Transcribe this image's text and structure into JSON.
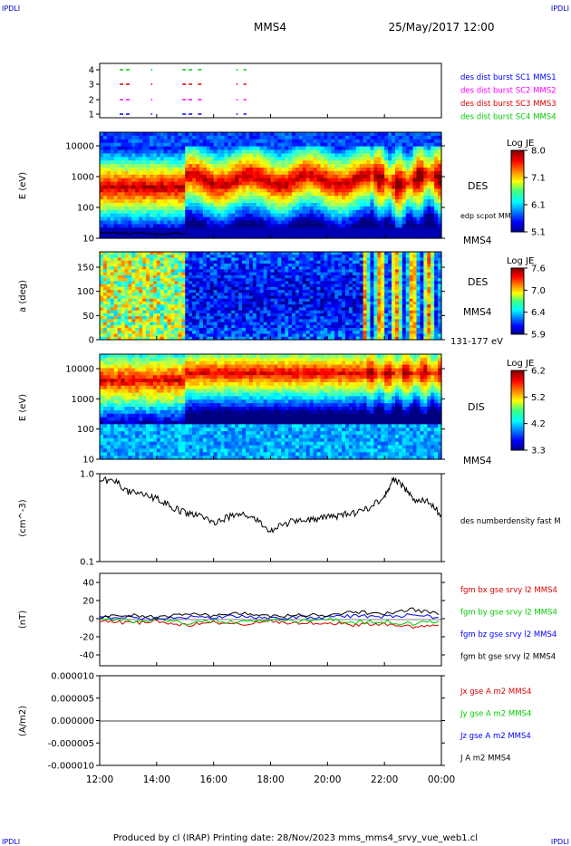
{
  "header": {
    "corner_tl": "IPDLI",
    "corner_tr": "IPDLI",
    "corner_bl": "IPDLI",
    "corner_br": "IPDLI",
    "title": "MMS4",
    "datetime": "25/May/2017 12:00"
  },
  "footer": {
    "text": "Produced by cl (IRAP)   Printing date: 28/Nov/2023   mms_mms4_srvy_vue_web1.cl"
  },
  "colors": {
    "corner": "#0000cc",
    "blue": "#0000ff",
    "magenta": "#ff00ff",
    "red": "#dd0000",
    "green": "#00cc00",
    "black": "#000000"
  },
  "time_axis": {
    "ticks": [
      "12:00",
      "14:00",
      "16:00",
      "18:00",
      "20:00",
      "22:00",
      "00:00"
    ],
    "range_hours": [
      12,
      24
    ]
  },
  "chart_data": [
    {
      "panel": "burst",
      "type": "scatter",
      "y_ticks": [
        "4",
        "3",
        "2",
        "1"
      ],
      "legend": [
        {
          "label": "des dist burst SC1 MMS1",
          "color": "#0000ff"
        },
        {
          "label": "des dist burst SC2 MMS2",
          "color": "#ff00ff"
        },
        {
          "label": "des dist burst SC3 MMS3",
          "color": "#dd0000"
        },
        {
          "label": "des dist burst SC4 MMS4",
          "color": "#00cc00"
        }
      ],
      "intervals_hours": [
        [
          12.7,
          13.1
        ],
        [
          13.8,
          13.85
        ],
        [
          14.9,
          15.3
        ],
        [
          15.45,
          15.6
        ],
        [
          16.8,
          16.85
        ],
        [
          17.05,
          17.15
        ]
      ]
    },
    {
      "panel": "des_energy",
      "type": "heatmap",
      "ylabel": "E (eV)",
      "y_ticks": [
        "10000",
        "1000",
        "100",
        "10"
      ],
      "right_label": "DES",
      "right_label2": "MMS4",
      "inset_label": "edp scpot MMS4",
      "colorbar": {
        "title": "Log JE",
        "ticks": [
          "8.0",
          "7.1",
          "6.1",
          "5.1"
        ],
        "range": [
          5.1,
          8.0
        ]
      }
    },
    {
      "panel": "des_pitch",
      "type": "heatmap",
      "ylabel": "a (deg)",
      "y_ticks": [
        "150",
        "100",
        "50",
        "0"
      ],
      "right_label": "DES",
      "right_label2": "MMS4",
      "right_label3": "131-177 eV",
      "colorbar": {
        "title": "Log JE",
        "ticks": [
          "7.6",
          "7.0",
          "6.4",
          "5.9"
        ],
        "range": [
          5.9,
          7.6
        ]
      }
    },
    {
      "panel": "dis_energy",
      "type": "heatmap",
      "ylabel": "E (eV)",
      "y_ticks": [
        "10000",
        "1000",
        "100",
        "10"
      ],
      "right_label": "DIS",
      "right_label2": "MMS4",
      "colorbar": {
        "title": "Log JE",
        "ticks": [
          "6.2",
          "5.2",
          "4.2",
          "3.3"
        ],
        "range": [
          3.3,
          6.2
        ]
      }
    },
    {
      "panel": "density",
      "type": "line",
      "ylabel": "(cm^-3)",
      "y_ticks": [
        "1.0",
        "0.1"
      ],
      "ylim": [
        0.1,
        1.0
      ],
      "scale": "log",
      "legend": [
        {
          "label": "des numberdensity fast M",
          "color": "#000000"
        }
      ],
      "x_hours": [
        12.0,
        12.5,
        13.0,
        13.5,
        14.0,
        14.5,
        15.0,
        15.5,
        16.0,
        16.5,
        17.0,
        17.5,
        18.0,
        18.5,
        19.0,
        19.5,
        20.0,
        20.5,
        21.0,
        21.5,
        22.0,
        22.3,
        22.6,
        23.0,
        23.5,
        24.0
      ],
      "y": [
        0.82,
        0.86,
        0.62,
        0.58,
        0.52,
        0.42,
        0.36,
        0.33,
        0.28,
        0.32,
        0.35,
        0.3,
        0.22,
        0.27,
        0.3,
        0.3,
        0.32,
        0.34,
        0.36,
        0.42,
        0.55,
        0.85,
        0.75,
        0.52,
        0.48,
        0.34
      ]
    },
    {
      "panel": "magnetic_field",
      "type": "line",
      "ylabel": "(nT)",
      "y_ticks": [
        "40",
        "20",
        "0",
        "-20",
        "-40"
      ],
      "ylim": [
        -50,
        50
      ],
      "legend": [
        {
          "label": "fgm bx gse srvy l2 MMS4",
          "color": "#dd0000"
        },
        {
          "label": "fgm by gse srvy l2 MMS4",
          "color": "#00cc00"
        },
        {
          "label": "fgm bz gse srvy l2 MMS4",
          "color": "#0000ff"
        },
        {
          "label": "fgm bt gse srvy l2 MMS4",
          "color": "#000000"
        }
      ],
      "x_hours": [
        12,
        13,
        14,
        15,
        16,
        17,
        18,
        19,
        20,
        21,
        22,
        23,
        24
      ],
      "series": [
        {
          "name": "fgm bx gse srvy l2 MMS4",
          "values": [
            -1,
            -4,
            -2,
            -6,
            -3,
            -5,
            -2,
            -4,
            -3,
            -6,
            -5,
            -8,
            -4
          ]
        },
        {
          "name": "fgm by gse srvy l2 MMS4",
          "values": [
            1,
            -2,
            0,
            -4,
            -1,
            -3,
            0,
            -2,
            1,
            -3,
            -2,
            -5,
            -1
          ]
        },
        {
          "name": "fgm bz gse srvy l2 MMS4",
          "values": [
            2,
            3,
            1,
            3,
            2,
            4,
            1,
            3,
            2,
            4,
            3,
            5,
            2
          ]
        },
        {
          "name": "fgm bt gse srvy l2 MMS4",
          "values": [
            3,
            5,
            2,
            7,
            4,
            7,
            3,
            5,
            4,
            8,
            6,
            11,
            5
          ]
        }
      ]
    },
    {
      "panel": "current_density",
      "type": "line",
      "ylabel": "(A/m2)",
      "y_ticks": [
        "0.000010",
        "0.000005",
        "0.000000",
        "-0.000005",
        "-0.000010"
      ],
      "ylim": [
        -1e-05,
        1e-05
      ],
      "legend": [
        {
          "label": "Jx gse A m2 MMS4",
          "color": "#dd0000"
        },
        {
          "label": "Jy gse A m2 MMS4",
          "color": "#00cc00"
        },
        {
          "label": "Jz gse A m2 MMS4",
          "color": "#0000ff"
        },
        {
          "label": "J A m2 MMS4",
          "color": "#000000"
        }
      ]
    }
  ]
}
